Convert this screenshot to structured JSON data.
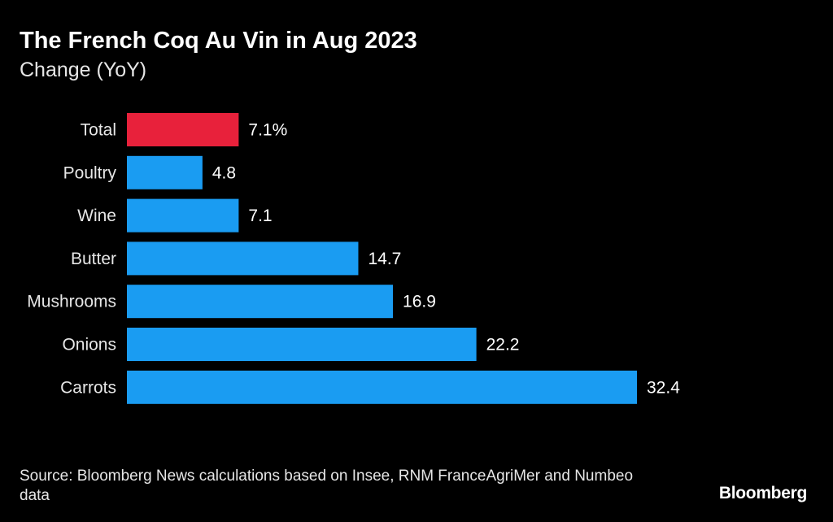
{
  "header": {
    "title": "The French Coq Au Vin in Aug 2023",
    "subtitle": "Change (YoY)"
  },
  "chart_data": {
    "type": "bar",
    "orientation": "horizontal",
    "categories": [
      "Total",
      "Poultry",
      "Wine",
      "Butter",
      "Mushrooms",
      "Onions",
      "Carrots"
    ],
    "values": [
      7.1,
      4.8,
      7.1,
      14.7,
      16.9,
      22.2,
      32.4
    ],
    "value_labels": [
      "7.1%",
      "4.8",
      "7.1",
      "14.7",
      "16.9",
      "22.2",
      "32.4"
    ],
    "title": "The French Coq Au Vin in Aug 2023",
    "subtitle": "Change (YoY)",
    "xlim": [
      0,
      32.4
    ],
    "grid": false,
    "colors": {
      "highlight": "#e8213b",
      "default": "#1a9cf2"
    },
    "highlight_index": 0
  },
  "footer": {
    "source": "Source: Bloomberg News calculations based on Insee, RNM FranceAgriMer and Numbeo data",
    "logo": "Bloomberg"
  }
}
